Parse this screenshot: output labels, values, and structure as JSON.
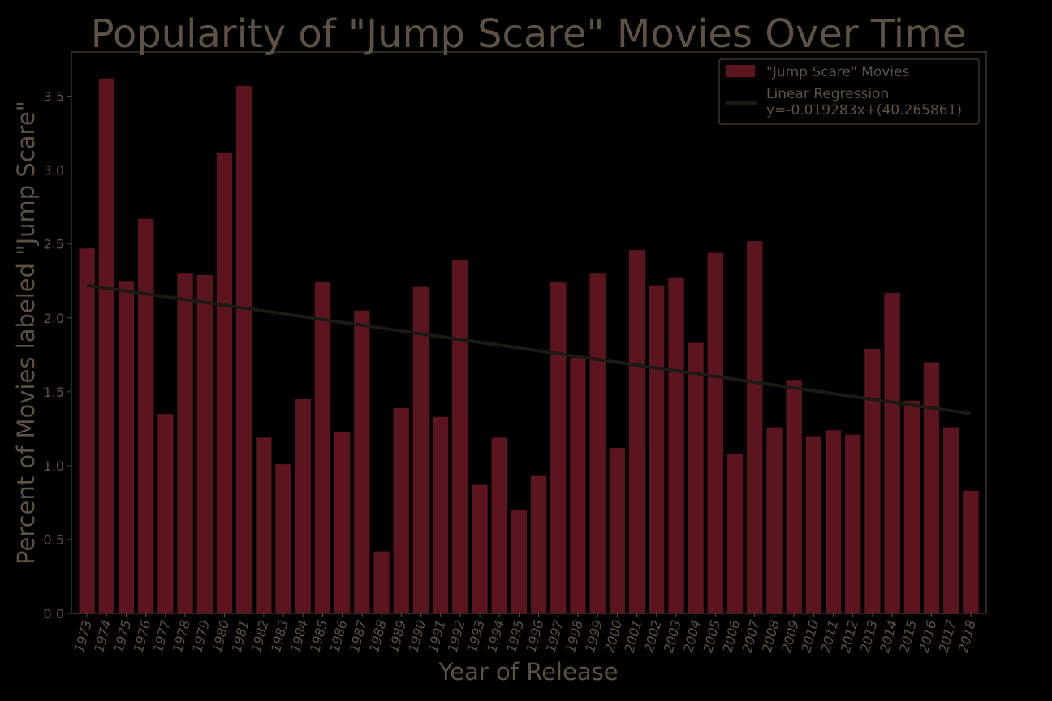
{
  "chart_data": {
    "type": "bar",
    "title": "Popularity of \"Jump Scare\" Movies Over Time",
    "xlabel": "Year of Release",
    "ylabel": "Percent of Movies labeled \"Jump Scare\"",
    "ylim": [
      0,
      3.8
    ],
    "yticks": [
      "0.0",
      "0.5",
      "1.0",
      "1.5",
      "2.0",
      "2.5",
      "3.0",
      "3.5"
    ],
    "categories": [
      "1973",
      "1974",
      "1975",
      "1976",
      "1977",
      "1978",
      "1979",
      "1980",
      "1981",
      "1982",
      "1983",
      "1984",
      "1985",
      "1986",
      "1987",
      "1988",
      "1989",
      "1990",
      "1991",
      "1992",
      "1993",
      "1994",
      "1995",
      "1996",
      "1997",
      "1998",
      "1999",
      "2000",
      "2001",
      "2002",
      "2003",
      "2004",
      "2005",
      "2006",
      "2007",
      "2008",
      "2009",
      "2010",
      "2011",
      "2012",
      "2013",
      "2014",
      "2015",
      "2016",
      "2017",
      "2018"
    ],
    "series": [
      {
        "name": "\"Jump Scare\" Movies",
        "values": [
          2.47,
          3.62,
          2.25,
          2.67,
          1.35,
          2.3,
          2.29,
          3.12,
          3.57,
          1.19,
          1.01,
          1.45,
          2.24,
          1.23,
          2.05,
          0.42,
          1.39,
          2.21,
          1.33,
          2.39,
          0.87,
          1.19,
          0.7,
          0.93,
          2.24,
          1.73,
          2.3,
          1.12,
          2.46,
          2.22,
          2.27,
          1.83,
          2.44,
          1.08,
          2.52,
          1.26,
          1.58,
          1.2,
          1.24,
          1.21,
          1.79,
          2.17,
          1.44,
          1.7,
          1.26,
          0.83
        ]
      }
    ],
    "regression": {
      "name": "Linear Regression",
      "equation": "y=-0.019283x+(40.265861)",
      "slope": -0.019283,
      "intercept": 40.265861
    },
    "legend_position": "top-right",
    "grid": false,
    "colors": {
      "background": "#000000",
      "bar": "#5c141e",
      "regression_line": "#1c1a14",
      "text": "#5c5143",
      "axes": "#5c5143"
    }
  }
}
